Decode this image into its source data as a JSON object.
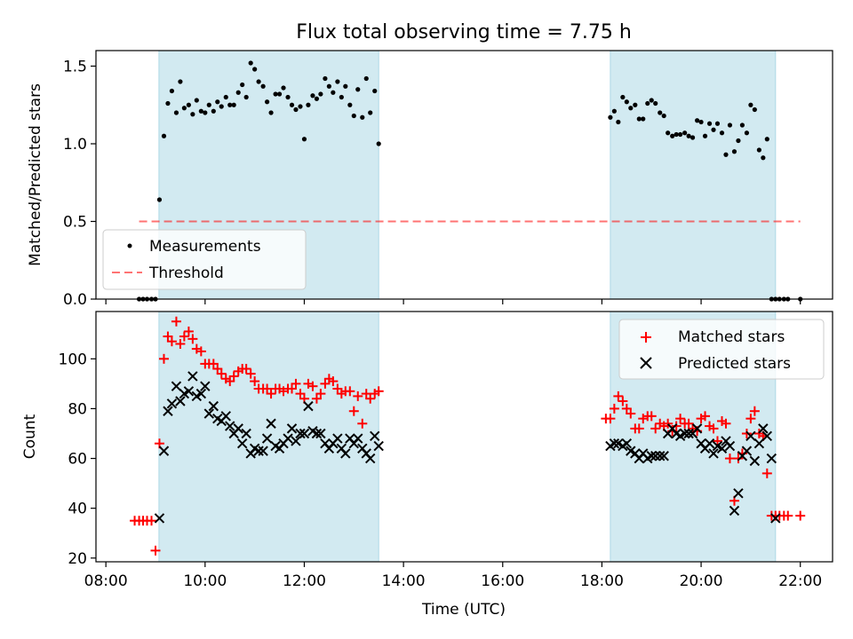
{
  "chart_data": {
    "type": "scatter",
    "title": "Flux total observing time = 7.75 h",
    "xlabel": "Time (UTC)",
    "x_ticks": [
      "08:00",
      "10:00",
      "12:00",
      "14:00",
      "16:00",
      "18:00",
      "20:00",
      "22:00"
    ],
    "xlim_hours": [
      7.8,
      22.65
    ],
    "observing_windows_hours": [
      [
        9.07,
        13.5
      ],
      [
        18.17,
        21.5
      ]
    ],
    "colors": {
      "windows": "#add8e6",
      "threshold": "#ff0000",
      "matched": "#ff0000",
      "predicted": "#000000",
      "measurements": "#000000"
    },
    "panels": [
      {
        "ylabel": "Matched/Predicted stars",
        "ylim": [
          0,
          1.6
        ],
        "y_ticks": [
          "0.0",
          "0.5",
          "1.0",
          "1.5"
        ],
        "legend": {
          "position": "lower-left",
          "entries": [
            "Measurements",
            "Threshold"
          ]
        },
        "threshold": {
          "name": "Threshold",
          "value": 0.5,
          "x": [
            8.67,
            22.0
          ]
        },
        "series": [
          {
            "name": "Measurements",
            "marker": "dot",
            "x": [
              8.67,
              8.75,
              8.83,
              8.92,
              9.0,
              9.08,
              9.17,
              9.25,
              9.33,
              9.42,
              9.5,
              9.58,
              9.67,
              9.75,
              9.83,
              9.92,
              10.0,
              10.08,
              10.17,
              10.25,
              10.33,
              10.42,
              10.5,
              10.58,
              10.67,
              10.75,
              10.83,
              10.92,
              11.0,
              11.08,
              11.17,
              11.25,
              11.33,
              11.42,
              11.5,
              11.58,
              11.67,
              11.75,
              11.83,
              11.92,
              12.0,
              12.08,
              12.17,
              12.25,
              12.33,
              12.42,
              12.5,
              12.58,
              12.67,
              12.75,
              12.83,
              12.92,
              13.0,
              13.08,
              13.17,
              13.25,
              13.33,
              13.42,
              13.5,
              18.17,
              18.25,
              18.33,
              18.42,
              18.5,
              18.58,
              18.67,
              18.75,
              18.83,
              18.92,
              19.0,
              19.08,
              19.17,
              19.25,
              19.33,
              19.42,
              19.5,
              19.58,
              19.67,
              19.75,
              19.83,
              19.92,
              20.0,
              20.08,
              20.17,
              20.25,
              20.33,
              20.42,
              20.5,
              20.58,
              20.67,
              20.75,
              20.83,
              20.92,
              21.0,
              21.08,
              21.17,
              21.25,
              21.33,
              21.42,
              21.5,
              21.58,
              21.67,
              21.75,
              22.0
            ],
            "y": [
              0.0,
              0.0,
              0.0,
              0.0,
              0.0,
              0.64,
              1.05,
              1.26,
              1.34,
              1.2,
              1.4,
              1.23,
              1.25,
              1.19,
              1.28,
              1.21,
              1.2,
              1.25,
              1.21,
              1.27,
              1.24,
              1.3,
              1.25,
              1.25,
              1.33,
              1.38,
              1.3,
              1.52,
              1.48,
              1.4,
              1.37,
              1.27,
              1.2,
              1.32,
              1.32,
              1.36,
              1.3,
              1.25,
              1.22,
              1.24,
              1.03,
              1.25,
              1.31,
              1.29,
              1.32,
              1.42,
              1.37,
              1.33,
              1.4,
              1.3,
              1.37,
              1.25,
              1.18,
              1.35,
              1.17,
              1.42,
              1.2,
              1.34,
              1.0,
              1.17,
              1.21,
              1.14,
              1.3,
              1.27,
              1.23,
              1.25,
              1.16,
              1.16,
              1.26,
              1.28,
              1.26,
              1.2,
              1.18,
              1.07,
              1.05,
              1.06,
              1.06,
              1.07,
              1.05,
              1.04,
              1.15,
              1.14,
              1.05,
              1.13,
              1.09,
              1.13,
              1.07,
              0.93,
              1.12,
              0.95,
              1.02,
              1.12,
              1.07,
              1.25,
              1.22,
              0.96,
              0.91,
              1.03,
              0.0,
              0.0,
              0.0,
              0.0,
              0.0,
              0.0
            ]
          }
        ]
      },
      {
        "ylabel": "Count",
        "ylim": [
          18.5,
          119
        ],
        "y_ticks": [
          "20",
          "40",
          "60",
          "80",
          "100"
        ],
        "legend": {
          "position": "upper-right",
          "entries": [
            "Matched stars",
            "Predicted stars"
          ]
        },
        "series": [
          {
            "name": "Matched stars",
            "marker": "plus",
            "x": [
              8.58,
              8.67,
              8.75,
              8.83,
              8.92,
              9.0,
              9.08,
              9.17,
              9.25,
              9.33,
              9.42,
              9.5,
              9.58,
              9.67,
              9.75,
              9.83,
              9.92,
              10.0,
              10.08,
              10.17,
              10.25,
              10.33,
              10.42,
              10.5,
              10.58,
              10.67,
              10.75,
              10.83,
              10.92,
              11.0,
              11.08,
              11.17,
              11.25,
              11.33,
              11.42,
              11.5,
              11.58,
              11.67,
              11.75,
              11.83,
              11.92,
              12.0,
              12.08,
              12.17,
              12.25,
              12.33,
              12.42,
              12.5,
              12.58,
              12.67,
              12.75,
              12.83,
              12.92,
              13.0,
              13.08,
              13.17,
              13.25,
              13.33,
              13.42,
              13.5,
              18.08,
              18.17,
              18.25,
              18.33,
              18.42,
              18.5,
              18.58,
              18.67,
              18.75,
              18.83,
              18.92,
              19.0,
              19.08,
              19.17,
              19.25,
              19.33,
              19.42,
              19.5,
              19.58,
              19.67,
              19.75,
              19.83,
              19.92,
              20.0,
              20.08,
              20.17,
              20.25,
              20.33,
              20.42,
              20.5,
              20.58,
              20.67,
              20.75,
              20.83,
              20.92,
              21.0,
              21.08,
              21.17,
              21.25,
              21.33,
              21.42,
              21.5,
              21.58,
              21.67,
              21.75,
              22.0
            ],
            "y": [
              35,
              35,
              35,
              35,
              35,
              23,
              66,
              100,
              109,
              107,
              115,
              106,
              109,
              111,
              108,
              104,
              103,
              98,
              98,
              98,
              96,
              94,
              92,
              91,
              93,
              95,
              96,
              96,
              94,
              91,
              88,
              88,
              88,
              86,
              88,
              88,
              87,
              88,
              88,
              90,
              86,
              84,
              90,
              89,
              84,
              86,
              90,
              92,
              91,
              88,
              86,
              87,
              87,
              79,
              85,
              74,
              86,
              84,
              86,
              87,
              76,
              76,
              80,
              85,
              83,
              80,
              78,
              72,
              72,
              76,
              77,
              77,
              72,
              74,
              73,
              74,
              71,
              73,
              76,
              74,
              74,
              72,
              71,
              76,
              77,
              73,
              72,
              67,
              75,
              74,
              60,
              43,
              60,
              62,
              70,
              76,
              79,
              70,
              69,
              54,
              37,
              37,
              37,
              37,
              37,
              37
            ]
          },
          {
            "name": "Predicted stars",
            "marker": "cross",
            "x": [
              9.08,
              9.17,
              9.25,
              9.33,
              9.42,
              9.5,
              9.58,
              9.67,
              9.75,
              9.83,
              9.92,
              10.0,
              10.08,
              10.17,
              10.25,
              10.33,
              10.42,
              10.5,
              10.58,
              10.67,
              10.75,
              10.83,
              10.92,
              11.0,
              11.08,
              11.17,
              11.25,
              11.33,
              11.42,
              11.5,
              11.58,
              11.67,
              11.75,
              11.83,
              11.92,
              12.0,
              12.08,
              12.17,
              12.25,
              12.33,
              12.42,
              12.5,
              12.58,
              12.67,
              12.75,
              12.83,
              12.92,
              13.0,
              13.08,
              13.17,
              13.25,
              13.33,
              13.42,
              13.5,
              18.17,
              18.25,
              18.33,
              18.42,
              18.5,
              18.58,
              18.67,
              18.75,
              18.83,
              18.92,
              19.0,
              19.08,
              19.17,
              19.25,
              19.33,
              19.42,
              19.5,
              19.58,
              19.67,
              19.75,
              19.83,
              19.92,
              20.0,
              20.08,
              20.17,
              20.25,
              20.33,
              20.42,
              20.5,
              20.58,
              20.67,
              20.75,
              20.83,
              20.92,
              21.0,
              21.08,
              21.17,
              21.25,
              21.33,
              21.42,
              21.5
            ],
            "y": [
              36,
              63,
              79,
              82,
              89,
              83,
              86,
              87,
              93,
              85,
              86,
              89,
              78,
              81,
              76,
              75,
              77,
              73,
              70,
              72,
              66,
              70,
              62,
              64,
              63,
              63,
              68,
              74,
              65,
              64,
              66,
              68,
              72,
              67,
              70,
              70,
              81,
              71,
              70,
              70,
              66,
              64,
              66,
              68,
              64,
              62,
              68,
              66,
              68,
              64,
              62,
              60,
              69,
              65,
              65,
              66,
              66,
              65,
              66,
              63,
              62,
              60,
              62,
              60,
              61,
              61,
              61,
              61,
              70,
              72,
              70,
              69,
              70,
              70,
              70,
              72,
              66,
              64,
              66,
              62,
              65,
              64,
              67,
              65,
              39,
              46,
              61,
              63,
              69,
              59,
              66,
              72,
              69,
              60,
              36
            ]
          }
        ]
      }
    ]
  }
}
